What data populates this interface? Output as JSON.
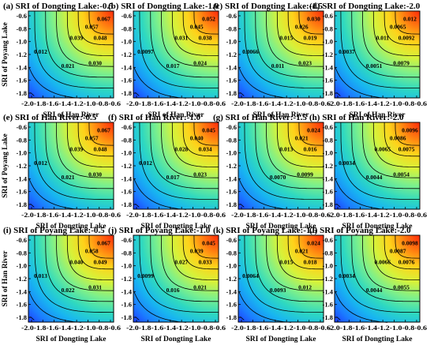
{
  "chart_data": [
    {
      "type": "heatmap",
      "panel": "(a)",
      "title": "SRI of Dongting Lake:-0.5",
      "xlabel": "SRI of Han River",
      "ylabel": "SRI of Poyang Lake",
      "contour_labels": [
        "0.067",
        "0.057",
        "0.048",
        "0.039",
        "0.030",
        "0.021",
        "0.012"
      ]
    },
    {
      "type": "heatmap",
      "panel": "(b)",
      "title": "SRI of Dongting Lake:-1.0",
      "xlabel": "SRI of Han River",
      "ylabel": "",
      "contour_labels": [
        "0.052",
        "0.045",
        "0.038",
        "0.031",
        "0.024",
        "0.017",
        "0.0097"
      ]
    },
    {
      "type": "heatmap",
      "panel": "(c)",
      "title": "SRI of Dongting Lake:-1.5",
      "xlabel": "SRI of Han River",
      "ylabel": "",
      "contour_labels": [
        "0.030",
        "0.026",
        "0.019",
        "0.015",
        "0.023",
        "0.011",
        "0.0066"
      ]
    },
    {
      "type": "heatmap",
      "panel": "(d)",
      "title": "SRI of Dongting Lake:-2.0",
      "xlabel": "SRI of Han River",
      "ylabel": "",
      "contour_labels": [
        "0.012",
        "0.0065",
        "0.0092",
        "0.011",
        "0.0079",
        "0.0051",
        "0.0037"
      ]
    },
    {
      "type": "heatmap",
      "panel": "(e)",
      "title": "SRI of Han River:-0.5",
      "xlabel": "SRI of Dongting Lake",
      "ylabel": "SRI of Poyang Lake",
      "contour_labels": [
        "0.067",
        "0.057",
        "0.048",
        "0.039",
        "0.030",
        "0.021",
        "0.012"
      ]
    },
    {
      "type": "heatmap",
      "panel": "(f)",
      "title": "SRI of Han River:-1.0",
      "xlabel": "SRI of Dongting Lake",
      "ylabel": "",
      "contour_labels": [
        "0.045",
        "0.040",
        "0.034",
        "0.028",
        "0.023",
        "0.017",
        "0.012"
      ]
    },
    {
      "type": "heatmap",
      "panel": "(g)",
      "title": "SRI of Han River:-1.5",
      "xlabel": "SRI of Dongting Lake",
      "ylabel": "",
      "contour_labels": [
        "0.024",
        "0.021",
        "0.016",
        "0.013",
        "0.0099",
        "0.0070"
      ]
    },
    {
      "type": "heatmap",
      "panel": "(h)",
      "title": "SRI of Han River:-2.0",
      "xlabel": "SRI of Dongting Lake",
      "ylabel": "",
      "contour_labels": [
        "0.0096",
        "0.0086",
        "0.0075",
        "0.0065",
        "0.0054",
        "0.0044",
        "0.0034"
      ]
    },
    {
      "type": "heatmap",
      "panel": "(i)",
      "title": "SRI of Poyang Lake:-0.5",
      "xlabel": "SRI of Dongting Lake",
      "ylabel": "SRI of Han River",
      "contour_labels": [
        "0.067",
        "0.058",
        "0.049",
        "0.040",
        "0.031",
        "0.022",
        "0.013"
      ]
    },
    {
      "type": "heatmap",
      "panel": "(j)",
      "title": "SRI of Poyang Lake:-1.0",
      "xlabel": "SRI of Dongting Lake",
      "ylabel": "",
      "contour_labels": [
        "0.045",
        "0.039",
        "0.033",
        "0.027",
        "0.021",
        "0.016",
        "0.0099"
      ]
    },
    {
      "type": "heatmap",
      "panel": "(k)",
      "title": "SRI of Poyang Lake:-1.5",
      "xlabel": "SRI of Dongting Lake",
      "ylabel": "",
      "contour_labels": [
        "0.024",
        "0.021",
        "0.018",
        "0.015",
        "0.012",
        "0.0093",
        "0.0064"
      ]
    },
    {
      "type": "heatmap",
      "panel": "(l)",
      "title": "SRI of Poyang Lake:-2.0",
      "xlabel": "SRI of Dongting Lake",
      "ylabel": "",
      "contour_labels": [
        "0.0098",
        "0.0087",
        "0.0076",
        "0.0066",
        "0.0055",
        "0.0044",
        "0.0034"
      ]
    }
  ],
  "axes": {
    "x_ticks": [
      "-2.0",
      "-1.8",
      "-1.6",
      "-1.4",
      "-1.2",
      "-1.0",
      "-0.8",
      "-0.6"
    ],
    "y_ticks": [
      "-0.6",
      "-0.8",
      "-1.0",
      "-1.2",
      "-1.4",
      "-1.6",
      "-1.8"
    ],
    "xlim": [
      -2.0,
      -0.5
    ],
    "ylim": [
      -2.0,
      -0.5
    ]
  },
  "colormap": [
    "#1d2cff",
    "#1b7cff",
    "#18b6f0",
    "#2fd9c0",
    "#7ef08a",
    "#d6f23a",
    "#ffd21a",
    "#ff7a10",
    "#ff2a0a"
  ]
}
